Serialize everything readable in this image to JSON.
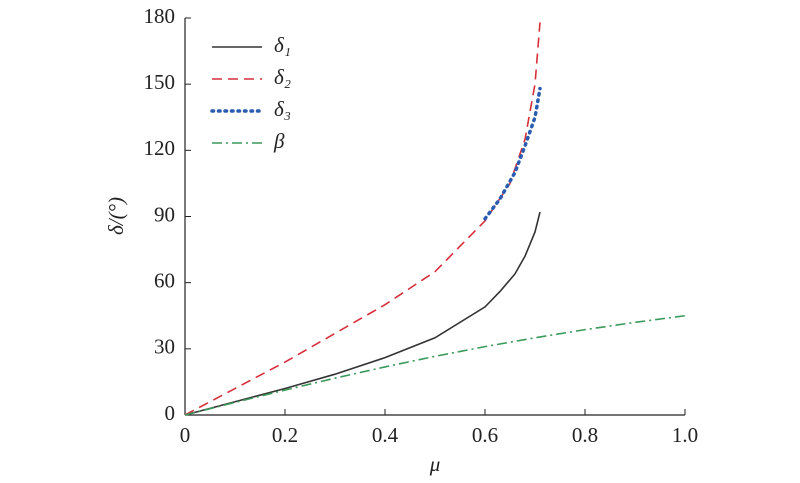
{
  "chart_data": {
    "type": "line",
    "xlabel": "μ",
    "ylabel": "δ/(°)",
    "xlim": [
      0,
      1.0
    ],
    "ylim": [
      0,
      180
    ],
    "xticks": [
      0,
      0.2,
      0.4,
      0.6,
      0.8,
      {
        "value": 1.0,
        "label": "1.0"
      }
    ],
    "yticks": [
      0,
      30,
      60,
      90,
      120,
      150,
      180
    ],
    "legend": "upper-left",
    "series": [
      {
        "name": "δ₁",
        "color": "#333333",
        "dash": "solid",
        "x": [
          0,
          0.1,
          0.2,
          0.3,
          0.4,
          0.5,
          0.6,
          0.63,
          0.66,
          0.68,
          0.7,
          0.71
        ],
        "values": [
          0,
          6,
          12,
          18.5,
          26,
          35,
          49,
          56,
          64,
          72,
          83,
          92
        ]
      },
      {
        "name": "δ₂",
        "color": "#d62f3a",
        "dash": "dashed",
        "x": [
          0,
          0.1,
          0.2,
          0.3,
          0.4,
          0.5,
          0.6,
          0.65,
          0.68,
          0.7,
          0.71
        ],
        "values": [
          0,
          12,
          24,
          37,
          50,
          65,
          88,
          105,
          125,
          150,
          178
        ]
      },
      {
        "name": "δ₃",
        "color": "#2a5db0",
        "dash": "dotted",
        "x": [
          0.6,
          0.63,
          0.66,
          0.68,
          0.7,
          0.71
        ],
        "values": [
          89,
          98,
          110,
          122,
          135,
          148
        ]
      },
      {
        "name": "β",
        "color": "#3a9a5a",
        "dash": "dashdot",
        "x": [
          0,
          0.1,
          0.2,
          0.3,
          0.4,
          0.5,
          0.6,
          0.7,
          0.8,
          0.9,
          1.0
        ],
        "values": [
          0,
          5.7,
          11.3,
          16.7,
          21.8,
          26.6,
          31,
          35,
          38.7,
          42,
          45
        ]
      }
    ]
  }
}
